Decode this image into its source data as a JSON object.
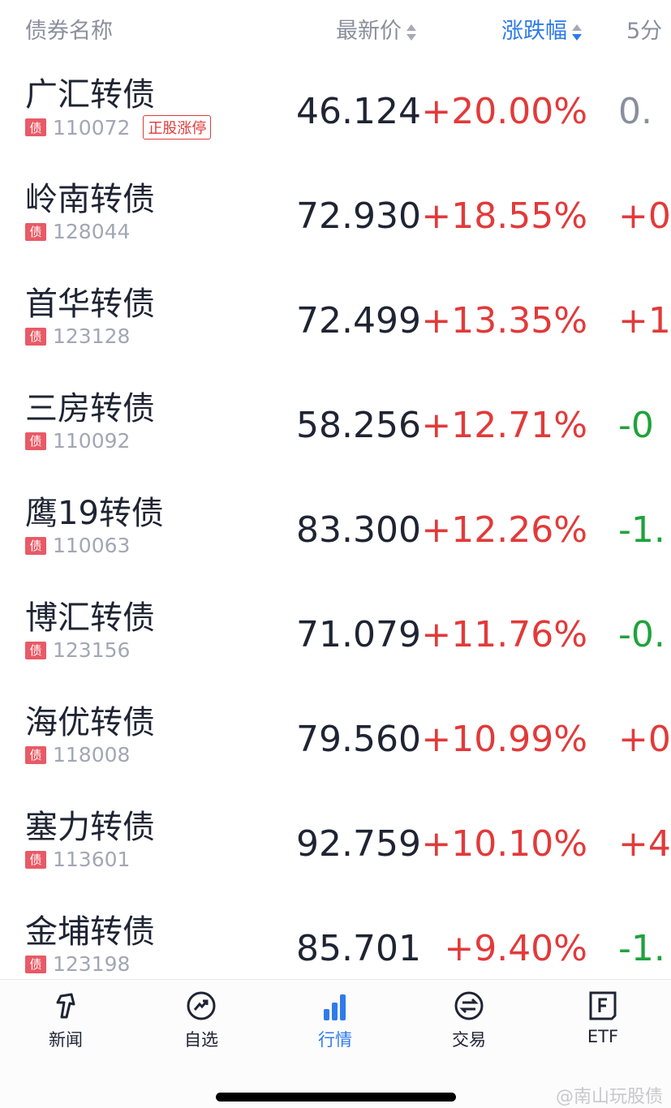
{
  "header": {
    "name": "债券名称",
    "price": "最新价",
    "change": "涨跌幅",
    "min5": "5分"
  },
  "rows": [
    {
      "name": "广汇转债",
      "code": "110072",
      "tag": "正股涨停",
      "price": "46.124",
      "change": "+20.00%",
      "min5": "0.",
      "min5_color": "gray"
    },
    {
      "name": "岭南转债",
      "code": "128044",
      "price": "72.930",
      "change": "+18.55%",
      "min5": "+0.",
      "min5_color": "red"
    },
    {
      "name": "首华转债",
      "code": "123128",
      "price": "72.499",
      "change": "+13.35%",
      "min5": "+1.",
      "min5_color": "red"
    },
    {
      "name": "三房转债",
      "code": "110092",
      "price": "58.256",
      "change": "+12.71%",
      "min5": "-0",
      "min5_color": "green"
    },
    {
      "name": "鹰19转债",
      "code": "110063",
      "price": "83.300",
      "change": "+12.26%",
      "min5": "-1.",
      "min5_color": "green"
    },
    {
      "name": "博汇转债",
      "code": "123156",
      "price": "71.079",
      "change": "+11.76%",
      "min5": "-0.",
      "min5_color": "green"
    },
    {
      "name": "海优转债",
      "code": "118008",
      "price": "79.560",
      "change": "+10.99%",
      "min5": "+0.",
      "min5_color": "red"
    },
    {
      "name": "塞力转债",
      "code": "113601",
      "price": "92.759",
      "change": "+10.10%",
      "min5": "+4.",
      "min5_color": "red"
    },
    {
      "name": "金埔转债",
      "code": "123198",
      "price": "85.701",
      "change": "+9.40%",
      "min5": "-1.",
      "min5_color": "green"
    }
  ],
  "bond_badge": "债",
  "tabs": [
    {
      "label": "新闻",
      "icon": "news-pin-icon"
    },
    {
      "label": "自选",
      "icon": "trend-circle-icon"
    },
    {
      "label": "行情",
      "icon": "bar-chart-icon",
      "active": true
    },
    {
      "label": "交易",
      "icon": "exchange-icon"
    },
    {
      "label": "ETF",
      "icon": "etf-f-icon"
    }
  ],
  "watermark": "@南山玩股债",
  "colors": {
    "up": "#e23a3a",
    "down": "#1fa33c",
    "accent": "#2f7bea"
  }
}
